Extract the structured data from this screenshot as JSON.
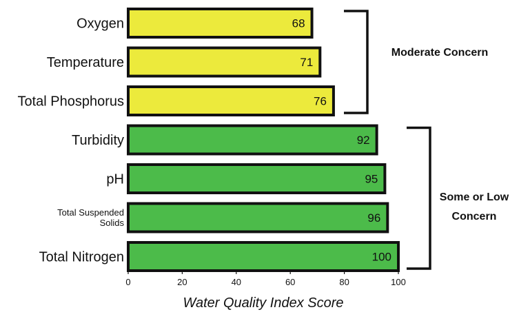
{
  "chart_data": {
    "type": "bar",
    "orientation": "horizontal",
    "categories": [
      "Oxygen",
      "Temperature",
      "Total Phosphorus",
      "Turbidity",
      "pH",
      "Total Suspended Solids",
      "Total Nitrogen"
    ],
    "category_lines": [
      [
        "Oxygen"
      ],
      [
        "Temperature"
      ],
      [
        "Total Phosphorus"
      ],
      [
        "Turbidity"
      ],
      [
        "pH"
      ],
      [
        "Total Suspended",
        "Solids"
      ],
      [
        "Total Nitrogen"
      ]
    ],
    "values": [
      68,
      71,
      76,
      92,
      95,
      96,
      100
    ],
    "value_labels": [
      "68",
      "71",
      "76",
      "92",
      "95",
      "96",
      "100"
    ],
    "bar_colors": [
      "#ecea3c",
      "#ecea3c",
      "#ecea3c",
      "#4cbb4a",
      "#4cbb4a",
      "#4cbb4a",
      "#4cbb4a"
    ],
    "xlabel": "Water Quality Index Score",
    "ylabel": "",
    "xlim": [
      0,
      100
    ],
    "xticks": [
      0,
      20,
      40,
      60,
      80,
      100
    ],
    "xtick_labels": [
      "0",
      "20",
      "40",
      "60",
      "80",
      "100"
    ],
    "groups": [
      {
        "lines": [
          "Moderate Concern"
        ],
        "from": 0,
        "to": 2
      },
      {
        "lines": [
          "Some or Low",
          "Concern"
        ],
        "from": 3,
        "to": 6
      }
    ],
    "grid": false,
    "legend": "none"
  }
}
